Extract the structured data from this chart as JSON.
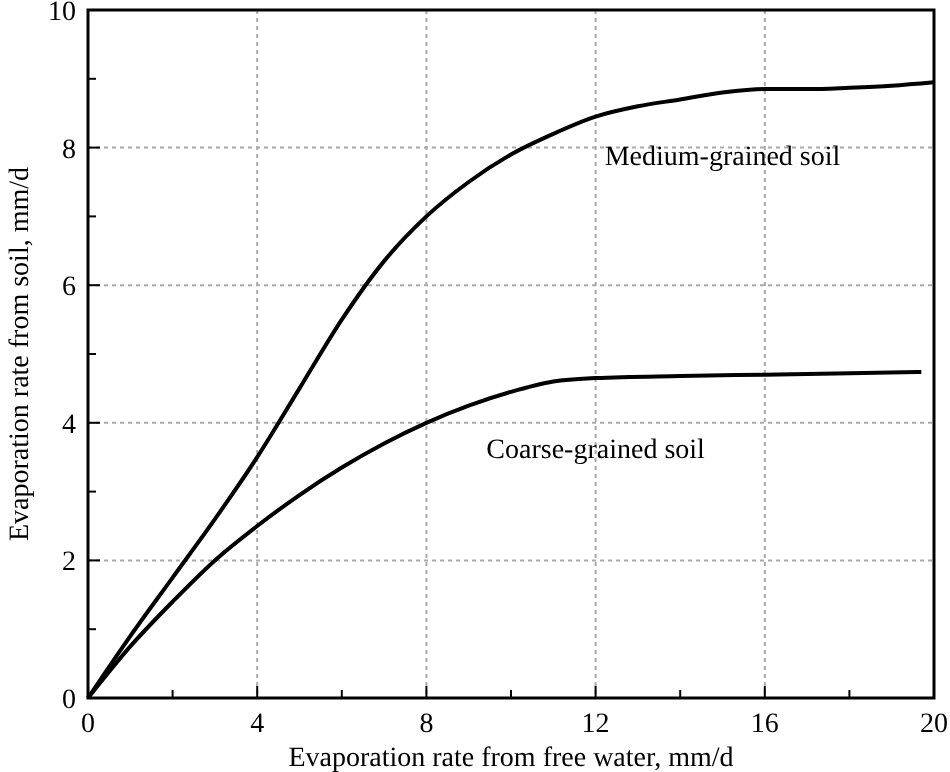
{
  "chart_data": {
    "type": "line",
    "xlabel": "Evaporation rate from free water, mm/d",
    "ylabel": "Evaporation rate from soil, mm/d",
    "xlim": [
      0,
      20
    ],
    "ylim": [
      0,
      10
    ],
    "xticks": [
      0,
      {
        "value": 2,
        "label": null
      },
      4,
      {
        "value": 6,
        "label": null
      },
      8,
      {
        "value": 10,
        "label": null
      },
      12,
      {
        "value": 14,
        "label": null
      },
      16,
      {
        "value": 18,
        "label": null
      },
      20
    ],
    "yticks": [
      0,
      {
        "value": 1,
        "label": null
      },
      2,
      {
        "value": 3,
        "label": null
      },
      4,
      {
        "value": 5,
        "label": null
      },
      6,
      {
        "value": 7,
        "label": null
      },
      8,
      {
        "value": 9,
        "label": null
      },
      10
    ],
    "grid": true,
    "legend": false,
    "marker": "none",
    "line_style": "solid",
    "series": [
      {
        "name": "Medium-grained soil",
        "color": "#000000",
        "x": [
          0,
          1,
          2,
          3,
          4,
          5,
          6,
          7,
          8,
          9,
          10,
          11,
          12,
          13,
          14,
          15,
          16,
          17,
          18,
          19,
          20
        ],
        "values": [
          0,
          0.9,
          1.75,
          2.6,
          3.5,
          4.5,
          5.5,
          6.35,
          7.0,
          7.5,
          7.9,
          8.2,
          8.45,
          8.6,
          8.7,
          8.8,
          8.85,
          8.85,
          8.87,
          8.9,
          8.95
        ]
      },
      {
        "name": "Coarse-grained soil",
        "color": "#000000",
        "x": [
          0,
          1,
          2,
          3,
          4,
          5,
          6,
          7,
          8,
          9,
          10,
          11,
          12,
          14,
          16,
          18,
          19.7
        ],
        "values": [
          0,
          0.75,
          1.4,
          2.0,
          2.5,
          2.95,
          3.35,
          3.7,
          4.0,
          4.25,
          4.45,
          4.6,
          4.65,
          4.68,
          4.7,
          4.72,
          4.74
        ]
      }
    ]
  }
}
